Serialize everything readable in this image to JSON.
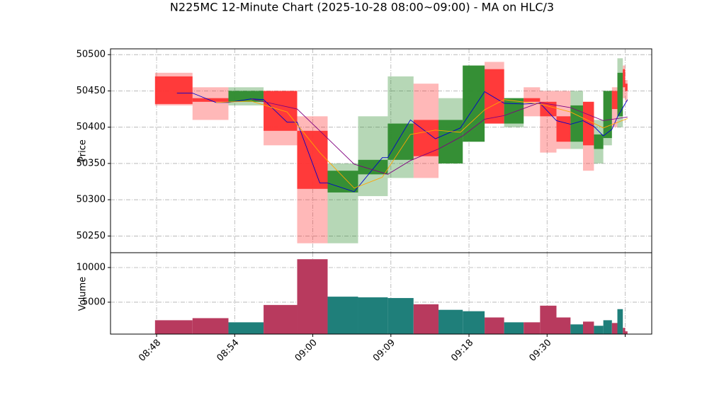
{
  "chart_data": {
    "type": "candlestick",
    "title": "N225MC 12-Minute Chart (2025-10-28 08:00~09:00) - MA on HLC/3",
    "ylabel": "Price",
    "volume_ylabel": "Volume",
    "up_color": "#2e8b2e",
    "down_color": "#ff3333",
    "volume_up_color": "#1f7f7a",
    "volume_down_color": "#b83a5e",
    "grid": true,
    "xlim": [
      -0.59,
      6.34
    ],
    "xticks": [
      {
        "value": 0,
        "label": "08:48"
      },
      {
        "value": 1,
        "label": "08:54"
      },
      {
        "value": 2,
        "label": "09:00"
      },
      {
        "value": 3,
        "label": "09:09"
      },
      {
        "value": 4,
        "label": "09:18"
      },
      {
        "value": 5,
        "label": "09:30"
      },
      {
        "value": 6,
        "label": null
      }
    ],
    "ylim": [
      50227,
      50508
    ],
    "yticks": [
      50250,
      50300,
      50350,
      50400,
      50450,
      50500
    ],
    "volume_ylim": [
      400,
      12140
    ],
    "volume_yticks": [
      5000,
      10000
    ],
    "x": [
      [
        -0.02,
        0.46
      ],
      [
        0.46,
        0.92
      ],
      [
        0.92,
        1.37
      ],
      [
        1.37,
        1.8
      ],
      [
        1.8,
        2.19
      ],
      [
        2.19,
        2.58
      ],
      [
        2.58,
        2.96
      ],
      [
        2.96,
        3.29
      ],
      [
        3.29,
        3.61
      ],
      [
        3.61,
        3.92
      ],
      [
        3.92,
        4.2
      ],
      [
        4.2,
        4.45
      ],
      [
        4.45,
        4.7
      ],
      [
        4.7,
        4.91
      ],
      [
        4.91,
        5.12
      ],
      [
        5.12,
        5.3
      ],
      [
        5.3,
        5.46
      ],
      [
        5.46,
        5.6
      ],
      [
        5.6,
        5.72
      ],
      [
        5.72,
        5.83
      ],
      [
        5.83,
        5.9
      ],
      [
        5.9,
        5.97
      ],
      [
        5.97,
        6.0
      ],
      [
        6.0,
        6.03
      ]
    ],
    "open": [
      50470,
      50440,
      50435,
      50450,
      50395,
      50310,
      50335,
      50355,
      50410,
      50350,
      50380,
      50480,
      50405,
      50440,
      50435,
      50415,
      50380,
      50435,
      50370,
      50385,
      50450,
      50415,
      50480,
      50460
    ],
    "high": [
      50475,
      50455,
      50455,
      50450,
      50415,
      50350,
      50415,
      50470,
      50460,
      50440,
      50485,
      50490,
      50440,
      50455,
      50450,
      50450,
      50450,
      50435,
      50410,
      50450,
      50455,
      50495,
      50485,
      50465
    ],
    "low": [
      50430,
      50410,
      50430,
      50375,
      50240,
      50240,
      50305,
      50330,
      50330,
      50350,
      50380,
      50405,
      50400,
      50415,
      50365,
      50370,
      50370,
      50340,
      50350,
      50375,
      50400,
      50400,
      50440,
      50435
    ],
    "close": [
      50432,
      50435,
      50450,
      50395,
      50315,
      50340,
      50355,
      50405,
      50360,
      50410,
      50485,
      50405,
      50440,
      50435,
      50415,
      50380,
      50430,
      50375,
      50390,
      50450,
      50425,
      50475,
      50455,
      50450
    ],
    "volume": [
      2400,
      2700,
      2100,
      4600,
      11200,
      5800,
      5700,
      5600,
      4700,
      3900,
      3700,
      2800,
      2100,
      2100,
      4500,
      2800,
      1800,
      2200,
      1600,
      2400,
      2000,
      4000,
      1300,
      800
    ],
    "moving_averages": [
      {
        "color": "#0000cc",
        "x": [
          0.26,
          0.46,
          0.76,
          0.92,
          1.21,
          1.37,
          1.67,
          1.8,
          2.09,
          2.19,
          2.53,
          2.89,
          2.96,
          3.25,
          3.57,
          3.89,
          4.2,
          4.45,
          4.7,
          4.91,
          5.12,
          5.3,
          5.46,
          5.6,
          5.72,
          5.83,
          5.9,
          6.03
        ],
        "values": [
          50447,
          50447,
          50434,
          50434,
          50439,
          50438,
          50407,
          50407,
          50323,
          50323,
          50311,
          50358,
          50358,
          50410,
          50384,
          50399,
          50449,
          50433,
          50432,
          50433,
          50409,
          50404,
          50409,
          50401,
          50388,
          50397,
          50414,
          50438
        ]
      },
      {
        "color": "#ffa500",
        "x": [
          0.76,
          1.21,
          1.67,
          2.09,
          2.53,
          2.89,
          3.25,
          3.57,
          3.89,
          4.2,
          4.45,
          4.91,
          5.3,
          5.72,
          6.03
        ],
        "values": [
          50434,
          50436,
          50421,
          50365,
          50316,
          50331,
          50390,
          50396,
          50393,
          50424,
          50438,
          50432,
          50421,
          50399,
          50412
        ]
      },
      {
        "color": "#800080",
        "x": [
          1.21,
          1.8,
          2.09,
          2.53,
          2.96,
          3.25,
          3.61,
          3.92,
          4.2,
          4.45,
          4.91,
          5.3,
          5.72,
          6.03
        ],
        "values": [
          50439,
          50425,
          50395,
          50349,
          50335,
          50354,
          50370,
          50388,
          50411,
          50416,
          50434,
          50427,
          50409,
          50414
        ]
      }
    ]
  }
}
